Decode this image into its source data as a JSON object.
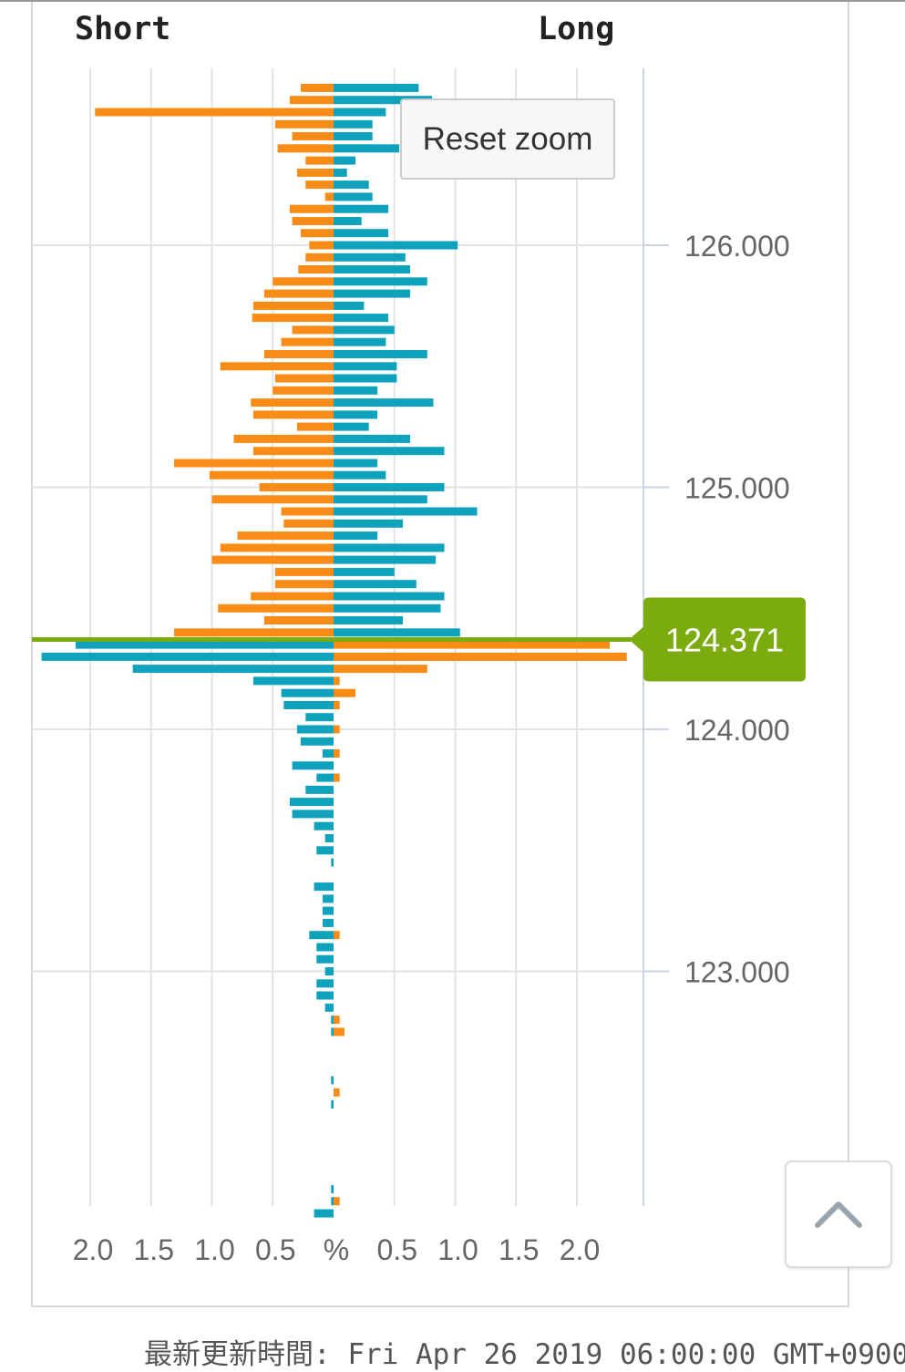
{
  "header": {
    "short_label": "Short",
    "long_label": "Long"
  },
  "reset_zoom_label": "Reset zoom",
  "updated_text": "最新更新時間: Fri Apr 26 2019 06:00:00 GMT+0900",
  "colors": {
    "orange": "#f88c16",
    "blue": "#0ea2bd",
    "price": "#7cab10",
    "grid": "#e3e3e3",
    "axis": "#c9d3e3",
    "label": "#666666"
  },
  "icons": {
    "scroll_top": "chevron-up-icon"
  },
  "chart_data": {
    "type": "bar",
    "orientation": "horizontal-butterfly",
    "x_axis": {
      "ticks": [
        "2.0",
        "1.5",
        "1.0",
        "0.5",
        "%",
        "0.5",
        "1.0",
        "1.5",
        "2.0"
      ],
      "tick_values": [
        -2.0,
        -1.5,
        -1.0,
        -0.5,
        0,
        0.5,
        1.0,
        1.5,
        2.0
      ],
      "range": [
        -2.5,
        2.5
      ]
    },
    "y_axis": {
      "ticks": [
        "126.000",
        "125.000",
        "124.000",
        "123.000"
      ],
      "tick_values": [
        126.0,
        125.0,
        124.0,
        123.0
      ],
      "range": [
        121.985,
        126.665
      ]
    },
    "current_price": {
      "label": "124.371",
      "value": 124.371
    },
    "series": [
      {
        "color": "#f88c16",
        "side": "short",
        "prices": [
          126.65,
          126.6,
          126.55,
          126.5,
          126.45,
          126.4,
          126.35,
          126.3,
          126.25,
          126.2,
          126.15,
          126.1,
          126.05,
          126.0,
          125.95,
          125.9,
          125.85,
          125.8,
          125.75,
          125.7,
          125.65,
          125.6,
          125.55,
          125.5,
          125.45,
          125.4,
          125.35,
          125.3,
          125.25,
          125.2,
          125.15,
          125.1,
          125.05,
          125.0,
          124.95,
          124.9,
          124.85,
          124.8,
          124.75,
          124.7,
          124.65,
          124.6,
          124.55,
          124.5,
          124.45,
          124.4
        ],
        "values": [
          0.27,
          0.36,
          1.96,
          0.48,
          0.34,
          0.46,
          0.23,
          0.3,
          0.23,
          0.07,
          0.36,
          0.34,
          0.27,
          0.2,
          0.23,
          0.29,
          0.5,
          0.57,
          0.66,
          0.67,
          0.34,
          0.43,
          0.57,
          0.93,
          0.48,
          0.5,
          0.68,
          0.66,
          0.3,
          0.82,
          0.66,
          1.31,
          1.02,
          0.61,
          1.0,
          0.43,
          0.41,
          0.79,
          0.93,
          1.0,
          0.48,
          0.48,
          0.68,
          0.95,
          0.57,
          1.31
        ]
      },
      {
        "color": "#0ea2bd",
        "side": "long",
        "prices": [
          126.65,
          126.6,
          126.55,
          126.5,
          126.45,
          126.4,
          126.35,
          126.3,
          126.25,
          126.2,
          126.15,
          126.1,
          126.05,
          126.0,
          125.95,
          125.9,
          125.85,
          125.8,
          125.75,
          125.7,
          125.65,
          125.6,
          125.55,
          125.5,
          125.45,
          125.4,
          125.35,
          125.3,
          125.25,
          125.2,
          125.15,
          125.1,
          125.05,
          125.0,
          124.95,
          124.9,
          124.85,
          124.8,
          124.75,
          124.7,
          124.65,
          124.6,
          124.55,
          124.5,
          124.45,
          124.4
        ],
        "values": [
          0.7,
          0.81,
          0.43,
          0.32,
          0.32,
          0.54,
          0.18,
          0.11,
          0.29,
          0.32,
          0.45,
          0.23,
          0.45,
          1.02,
          0.59,
          0.63,
          0.77,
          0.63,
          0.25,
          0.45,
          0.5,
          0.43,
          0.77,
          0.52,
          0.52,
          0.36,
          0.82,
          0.36,
          0.29,
          0.63,
          0.91,
          0.36,
          0.43,
          0.91,
          0.77,
          1.18,
          0.57,
          0.36,
          0.91,
          0.84,
          0.5,
          0.68,
          0.91,
          0.88,
          0.57,
          1.04
        ]
      },
      {
        "color": "#0ea2bd",
        "side": "short",
        "prices": [
          124.35,
          124.3,
          124.25,
          124.2,
          124.15,
          124.1,
          124.05,
          124.0,
          123.95,
          123.9,
          123.85,
          123.8,
          123.75,
          123.7,
          123.65,
          123.6,
          123.55,
          123.5,
          123.45,
          123.4,
          123.35,
          123.3,
          123.25,
          123.2,
          123.15,
          123.1,
          123.05,
          123.0,
          122.95,
          122.9,
          122.85,
          122.8,
          122.75,
          122.7,
          122.65,
          122.6,
          122.55,
          122.5,
          122.45,
          122.4,
          122.35,
          122.3,
          122.25,
          122.2,
          122.15,
          122.1,
          122.05,
          122.0
        ],
        "values": [
          2.12,
          2.4,
          1.65,
          0.66,
          0.43,
          0.41,
          0.23,
          0.3,
          0.27,
          0.09,
          0.34,
          0.14,
          0.23,
          0.36,
          0.34,
          0.16,
          0.07,
          0.14,
          0.02,
          0,
          0.16,
          0.09,
          0.09,
          0.09,
          0.2,
          0.14,
          0.14,
          0.07,
          0.14,
          0.14,
          0.07,
          0.02,
          0.02,
          0,
          0,
          0,
          0.02,
          0,
          0.02,
          0,
          0,
          0,
          0,
          0,
          0,
          0.02,
          0.02,
          0.16
        ]
      },
      {
        "color": "#f88c16",
        "side": "long",
        "prices": [
          124.35,
          124.3,
          124.25,
          124.2,
          124.15,
          124.1,
          124.05,
          124.0,
          123.95,
          123.9,
          123.85,
          123.8,
          123.75,
          123.7,
          123.65,
          123.6,
          123.55,
          123.5,
          123.45,
          123.4,
          123.35,
          123.3,
          123.25,
          123.2,
          123.15,
          123.1,
          123.05,
          123.0,
          122.95,
          122.9,
          122.85,
          122.8,
          122.75,
          122.7,
          122.65,
          122.6,
          122.55,
          122.5,
          122.45,
          122.4,
          122.35,
          122.3,
          122.25,
          122.2,
          122.15,
          122.1,
          122.05,
          122.0
        ],
        "values": [
          2.27,
          2.41,
          0.77,
          0.05,
          0.18,
          0.05,
          0,
          0.05,
          0,
          0.05,
          0,
          0.05,
          0,
          0,
          0,
          0,
          0,
          0,
          0,
          0,
          0,
          0,
          0,
          0,
          0.05,
          0,
          0,
          0,
          0,
          0,
          0,
          0.05,
          0.09,
          0,
          0,
          0,
          0,
          0.05,
          0,
          0,
          0,
          0,
          0,
          0,
          0,
          0,
          0.05,
          0
        ]
      }
    ]
  }
}
